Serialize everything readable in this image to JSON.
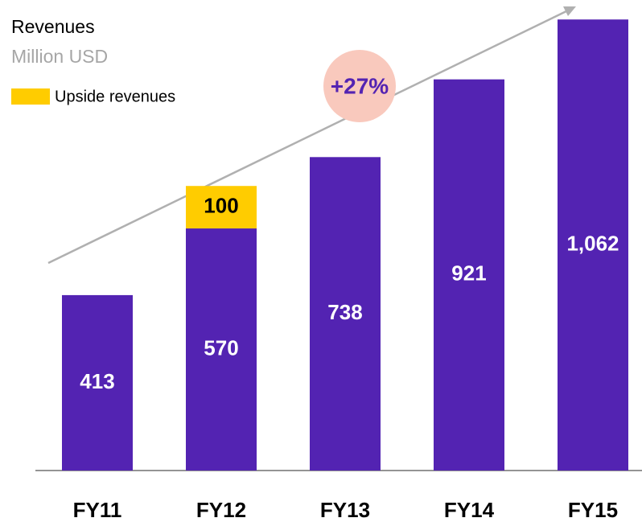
{
  "chart_data": {
    "type": "stacked_bar",
    "title": "Revenues",
    "subtitle": "Million USD",
    "categories": [
      "FY11",
      "FY12",
      "FY13",
      "FY14",
      "FY15"
    ],
    "series": [
      {
        "name": "Revenues",
        "color": "#5323b2",
        "values": [
          413,
          570,
          738,
          921,
          1062
        ],
        "value_labels": [
          "413",
          "570",
          "738",
          "921",
          "1,062"
        ]
      },
      {
        "name": "Upside revenues",
        "color": "#ffcc00",
        "values": [
          null,
          100,
          null,
          null,
          null
        ]
      }
    ],
    "annotation": "+27%",
    "ylim": [
      0,
      1070
    ]
  }
}
